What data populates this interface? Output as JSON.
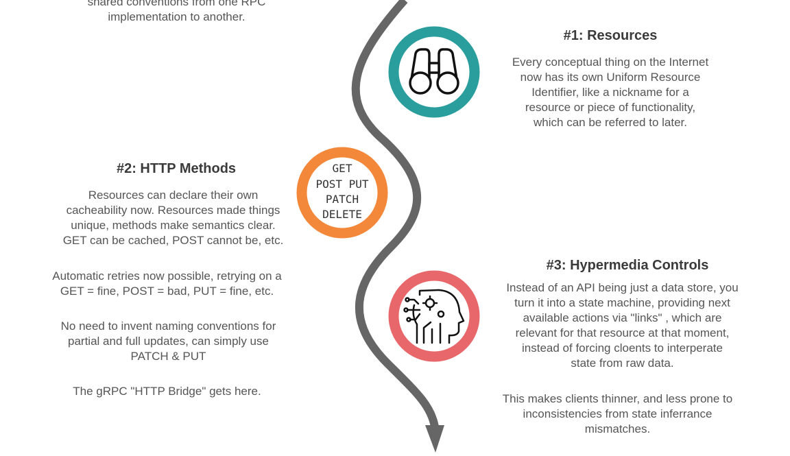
{
  "intro": {
    "line1": "shared conventions from one RPC",
    "line2": "implementation to another."
  },
  "steps": [
    {
      "title": "#1: Resources",
      "icon": "binoculars-icon",
      "ring_color": "#2a9d9d",
      "paragraphs": [
        [
          "Every conceptual thing on the Internet",
          "now has its own Uniform Resource",
          "Identifier, like a nickname for a",
          "resource or piece of functionality,",
          "which can be referred to later."
        ]
      ]
    },
    {
      "title": "#2: HTTP Methods",
      "icon": "http-methods-icon",
      "ring_color": "#f4883a",
      "methods": [
        "GET",
        "POST PUT",
        "PATCH",
        "DELETE"
      ],
      "paragraphs": [
        [
          "Resources can declare their own",
          "cacheability now. Resources made things",
          "unique, methods make semantics clear.",
          "GET can be cached, POST cannot be, etc."
        ],
        [
          "Automatic retries now possible, retrying on a",
          "GET = fine, POST = bad, PUT = fine, etc."
        ],
        [
          "No need to invent naming conventions for",
          "partial and full updates, can simply use",
          "PATCH & PUT"
        ],
        [
          "The gRPC \"HTTP Bridge\" gets here."
        ]
      ]
    },
    {
      "title": "#3: Hypermedia Controls",
      "icon": "ai-head-gears-icon",
      "ring_color": "#e8676a",
      "paragraphs": [
        [
          "Instead of an API being just a data store, you",
          "turn it into a state machine, providing next",
          "available actions via \"links\" , which are",
          "relevant for that resource at that moment,",
          "instead of forcing cloents to interperate",
          "state from raw data."
        ],
        [
          "This makes clients thinner, and less prone to",
          "inconsistencies from state inferrance",
          "mismatches."
        ]
      ]
    }
  ],
  "path_color": "#666666"
}
